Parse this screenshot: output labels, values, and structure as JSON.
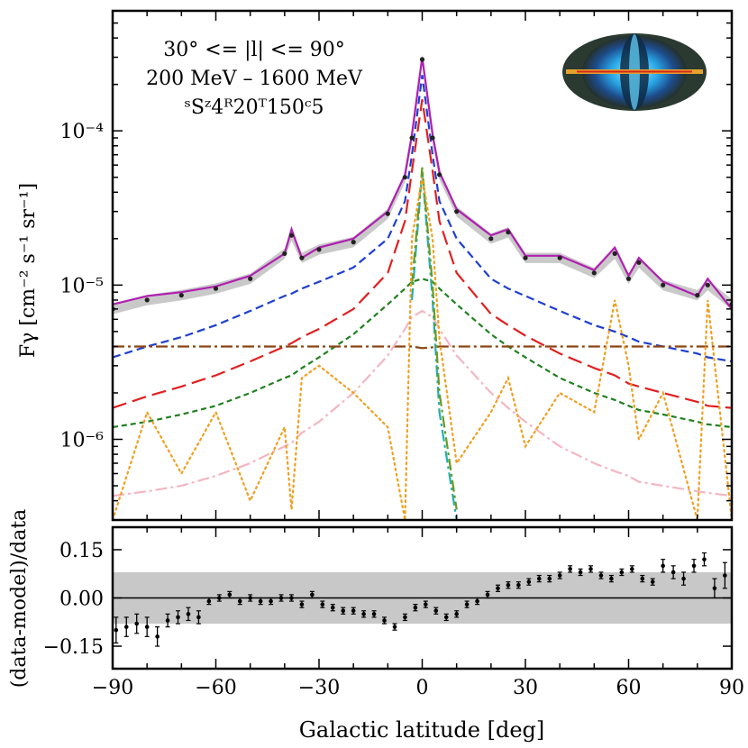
{
  "chart_data": [
    {
      "type": "line",
      "yscale": "log",
      "xlim": [
        -90,
        90
      ],
      "ylim": [
        3e-07,
        0.0006
      ],
      "ylabel": "Fγ [cm⁻² s⁻¹ sr⁻¹]",
      "yticks": [
        1e-06,
        1e-05,
        0.0001
      ],
      "ytick_labels": [
        "10⁻⁶",
        "10⁻⁵",
        "10⁻⁴"
      ],
      "annotation": [
        "30° <= |l| <= 90°",
        "200 MeV – 1600 MeV",
        "ˢSᶻ4ᴿ20ᵀ150ᶜ5"
      ],
      "inset": "sky map (Mollweide, intensity)",
      "x": [
        -90,
        -80,
        -70,
        -60,
        -50,
        -40,
        -38,
        -35,
        -30,
        -20,
        -10,
        -5,
        -3,
        0,
        3,
        5,
        10,
        20,
        25,
        30,
        40,
        50,
        56,
        60,
        63,
        70,
        80,
        83,
        90
      ],
      "series": [
        {
          "color": "#222222",
          "style": "points",
          "values": [
            7e-06,
            8e-06,
            8.6e-06,
            9.5e-06,
            1.1e-05,
            1.6e-05,
            2.1e-05,
            1.5e-05,
            1.7e-05,
            1.9e-05,
            2.9e-05,
            5e-05,
            9e-05,
            0.00029,
            9e-05,
            5.2e-05,
            3e-05,
            2e-05,
            2.2e-05,
            1.5e-05,
            1.5e-05,
            1.2e-05,
            1.6e-05,
            1.1e-05,
            1.4e-05,
            1e-05,
            8.6e-06,
            1e-05,
            7.5e-06
          ]
        },
        {
          "color": "#b020b0",
          "style": "solid",
          "values": [
            7.5e-06,
            8.5e-06,
            9e-06,
            9.8e-06,
            1.15e-05,
            1.6e-05,
            2.3e-05,
            1.5e-05,
            1.75e-05,
            2e-05,
            3e-05,
            5.2e-05,
            9.5e-05,
            0.0003,
            9.5e-05,
            5.4e-05,
            3.1e-05,
            2.1e-05,
            2.3e-05,
            1.55e-05,
            1.55e-05,
            1.25e-05,
            1.75e-05,
            1.15e-05,
            1.5e-05,
            1.05e-05,
            8.5e-06,
            1.1e-05,
            7e-06
          ]
        },
        {
          "color": "#1f3fd0",
          "style": "dashed",
          "values": [
            3.4e-06,
            4e-06,
            4.6e-06,
            5.5e-06,
            6.8e-06,
            8.5e-06,
            8.8e-06,
            9.5e-06,
            1.05e-05,
            1.3e-05,
            2e-05,
            3.5e-05,
            7e-05,
            0.00023,
            7e-05,
            3.5e-05,
            2e-05,
            1.1e-05,
            9.5e-06,
            8.5e-06,
            6.8e-06,
            5.5e-06,
            5e-06,
            4.6e-06,
            4.3e-06,
            4e-06,
            3.6e-06,
            3.4e-06,
            3.2e-06
          ]
        },
        {
          "color": "#e02020",
          "style": "longdash",
          "values": [
            1.6e-06,
            1.9e-06,
            2.2e-06,
            2.6e-06,
            3.2e-06,
            4e-06,
            4.2e-06,
            4.6e-06,
            5.2e-06,
            7e-06,
            1.2e-05,
            2.6e-05,
            5.5e-05,
            0.00016,
            5.5e-05,
            2.6e-05,
            1.2e-05,
            6.5e-06,
            5.5e-06,
            4.7e-06,
            3.6e-06,
            2.9e-06,
            2.6e-06,
            2.3e-06,
            2.2e-06,
            2e-06,
            1.75e-06,
            1.65e-06,
            1.6e-06
          ]
        },
        {
          "color": "#208020",
          "style": "shortdash",
          "values": [
            1.2e-06,
            1.3e-06,
            1.45e-06,
            1.65e-06,
            2e-06,
            2.5e-06,
            2.6e-06,
            2.9e-06,
            3.4e-06,
            4.8e-06,
            7.5e-06,
            9.5e-06,
            1.05e-05,
            1.1e-05,
            1.05e-05,
            9.5e-06,
            7.5e-06,
            4.8e-06,
            4e-06,
            3.4e-06,
            2.5e-06,
            2e-06,
            1.8e-06,
            1.65e-06,
            1.55e-06,
            1.45e-06,
            1.3e-06,
            1.25e-06,
            1.2e-06
          ]
        },
        {
          "color": "#8b4513",
          "style": "dashdot",
          "values": [
            4e-06,
            4e-06,
            4e-06,
            4e-06,
            4e-06,
            4e-06,
            4e-06,
            4e-06,
            4e-06,
            4e-06,
            4e-06,
            4e-06,
            4e-06,
            3.9e-06,
            3.95e-06,
            4e-06,
            4e-06,
            4e-06,
            4e-06,
            4e-06,
            4e-06,
            4e-06,
            4e-06,
            4e-06,
            4e-06,
            4e-06,
            4e-06,
            4e-06,
            4e-06
          ]
        },
        {
          "color": "#f4b6c2",
          "style": "dashdot",
          "values": [
            4.3e-07,
            4.6e-07,
            5e-07,
            5.8e-07,
            7e-07,
            9e-07,
            9.5e-07,
            1.1e-06,
            1.3e-06,
            2e-06,
            3.5e-06,
            5.2e-06,
            6.2e-06,
            6.8e-06,
            6.2e-06,
            5.2e-06,
            3.5e-06,
            2e-06,
            1.6e-06,
            1.3e-06,
            9e-07,
            7e-07,
            6.2e-07,
            5.8e-07,
            5.3e-07,
            5e-07,
            4.6e-07,
            4.5e-07,
            4.3e-07
          ]
        },
        {
          "color": "#20b0b0",
          "style": "dashdot",
          "values": [
            null,
            null,
            null,
            null,
            null,
            null,
            null,
            null,
            null,
            null,
            null,
            null,
            8e-06,
            5.5e-05,
            8e-06,
            1.5e-06,
            3e-07,
            null,
            null,
            null,
            null,
            null,
            null,
            null,
            null,
            null,
            null,
            null,
            null
          ]
        },
        {
          "color": "#6a9a20",
          "style": "dashdot",
          "values": [
            null,
            null,
            null,
            null,
            null,
            null,
            null,
            null,
            null,
            null,
            null,
            null,
            1e-05,
            5.8e-05,
            1e-05,
            2e-06,
            3.5e-07,
            null,
            null,
            null,
            null,
            null,
            null,
            null,
            null,
            null,
            null,
            null,
            null
          ]
        },
        {
          "color": "#f0a020",
          "style": "dotted",
          "values": [
            3e-07,
            1.5e-06,
            6e-07,
            1.5e-06,
            4e-07,
            1.2e-06,
            3.5e-07,
            2.5e-06,
            3e-06,
            2e-06,
            1.2e-06,
            3e-07,
            2e-05,
            5e-05,
            2e-05,
            4.5e-06,
            7e-07,
            1.5e-06,
            2.5e-06,
            9e-07,
            2e-06,
            1.5e-06,
            8e-06,
            3e-06,
            1e-06,
            2e-06,
            3e-07,
            8e-06,
            3e-07
          ]
        }
      ]
    },
    {
      "type": "scatter",
      "xlim": [
        -90,
        90
      ],
      "ylim": [
        -0.22,
        0.22
      ],
      "xlabel": "Galactic latitude [deg]",
      "ylabel": "(data-model)/data",
      "xticks": [
        -90,
        -60,
        -30,
        0,
        30,
        60,
        90
      ],
      "xtick_labels": [
        "−90",
        "−60",
        "−30",
        "0",
        "30",
        "60",
        "90"
      ],
      "yticks": [
        -0.15,
        0.0,
        0.15
      ],
      "ytick_labels": [
        "−0.15",
        "0.00",
        "0.15"
      ],
      "band": [
        -0.08,
        0.08
      ],
      "x": [
        -89,
        -86,
        -83,
        -80,
        -77,
        -74,
        -71,
        -68,
        -65,
        -62,
        -59,
        -56,
        -53,
        -50,
        -47,
        -44,
        -41,
        -38,
        -35,
        -32,
        -29,
        -26,
        -23,
        -20,
        -17,
        -14,
        -11,
        -8,
        -5,
        -2,
        1,
        4,
        7,
        10,
        13,
        16,
        19,
        22,
        25,
        28,
        31,
        34,
        37,
        40,
        43,
        46,
        49,
        52,
        55,
        58,
        61,
        64,
        67,
        70,
        73,
        76,
        79,
        82,
        85,
        88
      ],
      "values": [
        -0.1,
        -0.09,
        -0.08,
        -0.09,
        -0.12,
        -0.07,
        -0.06,
        -0.05,
        -0.06,
        -0.01,
        0.0,
        0.01,
        -0.01,
        0.0,
        -0.01,
        -0.01,
        0.0,
        0.0,
        -0.02,
        0.01,
        -0.02,
        -0.03,
        -0.04,
        -0.04,
        -0.05,
        -0.05,
        -0.07,
        -0.09,
        -0.06,
        -0.03,
        -0.02,
        -0.04,
        -0.06,
        -0.05,
        -0.02,
        -0.01,
        0.01,
        0.03,
        0.04,
        0.04,
        0.05,
        0.06,
        0.06,
        0.07,
        0.09,
        0.08,
        0.09,
        0.07,
        0.06,
        0.08,
        0.09,
        0.06,
        0.05,
        0.1,
        0.08,
        0.06,
        0.1,
        0.12,
        0.03,
        0.07
      ],
      "errors": [
        0.04,
        0.03,
        0.03,
        0.03,
        0.03,
        0.02,
        0.02,
        0.02,
        0.02,
        0.01,
        0.01,
        0.01,
        0.01,
        0.01,
        0.01,
        0.01,
        0.01,
        0.01,
        0.01,
        0.01,
        0.01,
        0.01,
        0.01,
        0.01,
        0.01,
        0.01,
        0.01,
        0.01,
        0.01,
        0.01,
        0.01,
        0.01,
        0.01,
        0.01,
        0.01,
        0.01,
        0.01,
        0.01,
        0.01,
        0.01,
        0.01,
        0.01,
        0.01,
        0.01,
        0.01,
        0.01,
        0.01,
        0.01,
        0.01,
        0.01,
        0.01,
        0.01,
        0.01,
        0.02,
        0.02,
        0.02,
        0.02,
        0.02,
        0.03,
        0.04
      ]
    }
  ]
}
